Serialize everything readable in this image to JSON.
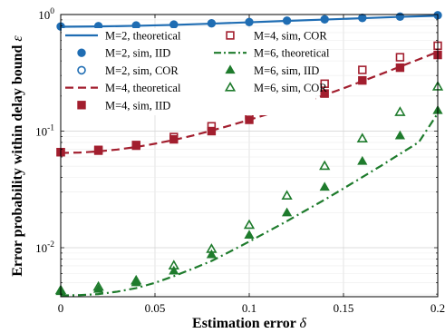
{
  "chart_data": {
    "type": "line",
    "xlabel": "Estimation error",
    "xlabel_symbol": "δ",
    "ylabel": "Error probability within delay bound",
    "ylabel_symbol": "ε",
    "xlim": [
      0,
      0.2
    ],
    "ylim": [
      0.0038,
      1
    ],
    "yscale": "log",
    "grid": true,
    "legend_placement": "top-left",
    "x_ticks": [
      "0",
      "0.05",
      "0.1",
      "0.15",
      "0.2"
    ],
    "y_ticks": [
      "10^0",
      "10^-1",
      "10^-2"
    ],
    "series": [
      {
        "name": "M=2, theoretical",
        "kind": "line",
        "style": "solid",
        "color": "#1f6db3",
        "x": [
          0,
          0.02,
          0.04,
          0.06,
          0.08,
          0.1,
          0.12,
          0.14,
          0.16,
          0.18,
          0.2
        ],
        "y": [
          0.785,
          0.79,
          0.8,
          0.815,
          0.835,
          0.858,
          0.882,
          0.905,
          0.93,
          0.955,
          0.975
        ]
      },
      {
        "name": "M=2, sim, IID",
        "kind": "marker",
        "marker": "circle-filled",
        "color": "#1f6db3",
        "x": [
          0,
          0.02,
          0.04,
          0.06,
          0.08,
          0.1,
          0.12,
          0.14,
          0.16,
          0.18,
          0.2
        ],
        "y": [
          0.79,
          0.795,
          0.805,
          0.82,
          0.84,
          0.862,
          0.885,
          0.91,
          0.935,
          0.96,
          0.985
        ]
      },
      {
        "name": "M=2, sim, COR",
        "kind": "marker",
        "marker": "circle-open",
        "color": "#1f6db3",
        "x": [],
        "y": []
      },
      {
        "name": "M=4, theoretical",
        "kind": "line",
        "style": "dashed",
        "color": "#a21e2e",
        "x": [
          0,
          0.01,
          0.02,
          0.03,
          0.04,
          0.05,
          0.06,
          0.07,
          0.08,
          0.09,
          0.1,
          0.11,
          0.12,
          0.13,
          0.14,
          0.15,
          0.16,
          0.17,
          0.18,
          0.19,
          0.2
        ],
        "y": [
          0.065,
          0.0655,
          0.067,
          0.0695,
          0.073,
          0.078,
          0.084,
          0.0915,
          0.101,
          0.112,
          0.125,
          0.14,
          0.158,
          0.179,
          0.204,
          0.233,
          0.268,
          0.309,
          0.357,
          0.413,
          0.478
        ]
      },
      {
        "name": "M=4, sim, IID",
        "kind": "marker",
        "marker": "square-filled",
        "color": "#a21e2e",
        "x": [
          0,
          0.02,
          0.04,
          0.06,
          0.08,
          0.1,
          0.12,
          0.14,
          0.16,
          0.18,
          0.2
        ],
        "y": [
          0.066,
          0.068,
          0.075,
          0.085,
          0.1,
          0.125,
          0.158,
          0.21,
          0.272,
          0.35,
          0.45
        ]
      },
      {
        "name": "M=4, sim, COR",
        "kind": "marker",
        "marker": "square-open",
        "color": "#a21e2e",
        "x": [
          0,
          0.02,
          0.04,
          0.06,
          0.08,
          0.1,
          0.12,
          0.14,
          0.16,
          0.18,
          0.2
        ],
        "y": [
          0.066,
          0.069,
          0.076,
          0.089,
          0.11,
          0.137,
          0.175,
          0.255,
          0.335,
          0.43,
          0.54
        ]
      },
      {
        "name": "M=6, theoretical",
        "kind": "line",
        "style": "dashdot",
        "color": "#1e7b2c",
        "x": [
          0,
          0.01,
          0.02,
          0.03,
          0.04,
          0.05,
          0.06,
          0.07,
          0.08,
          0.09,
          0.1,
          0.11,
          0.12,
          0.13,
          0.14,
          0.15,
          0.16,
          0.17,
          0.18,
          0.19,
          0.2
        ],
        "y": [
          0.0039,
          0.00392,
          0.004,
          0.0042,
          0.0045,
          0.005,
          0.0057,
          0.0066,
          0.0077,
          0.0093,
          0.0113,
          0.0138,
          0.0169,
          0.0209,
          0.0258,
          0.0322,
          0.0403,
          0.0505,
          0.0638,
          0.0805,
          0.142
        ]
      },
      {
        "name": "M=6, sim, IID",
        "kind": "marker",
        "marker": "triangle-filled",
        "color": "#1e7b2c",
        "x": [
          0,
          0.02,
          0.04,
          0.06,
          0.08,
          0.1,
          0.12,
          0.14,
          0.16,
          0.18,
          0.2
        ],
        "y": [
          0.0042,
          0.0044,
          0.005,
          0.0063,
          0.0087,
          0.0128,
          0.0199,
          0.033,
          0.055,
          0.091,
          0.15
        ]
      },
      {
        "name": "M=6, sim, COR",
        "kind": "marker",
        "marker": "triangle-open",
        "color": "#1e7b2c",
        "x": [
          0,
          0.02,
          0.04,
          0.06,
          0.08,
          0.1,
          0.12,
          0.14,
          0.16,
          0.18,
          0.2
        ],
        "y": [
          0.0043,
          0.0046,
          0.0052,
          0.007,
          0.0097,
          0.0156,
          0.0278,
          0.05,
          0.086,
          0.145,
          0.24
        ]
      }
    ]
  }
}
